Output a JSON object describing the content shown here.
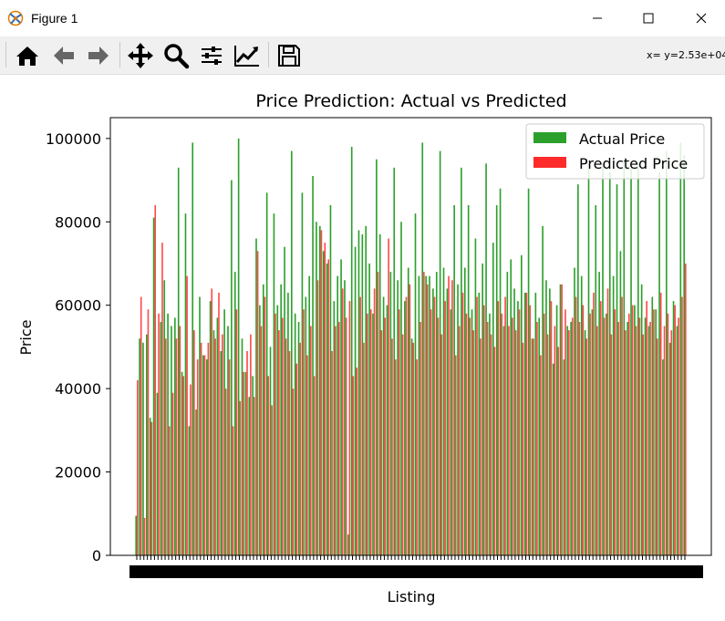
{
  "window": {
    "title": "Figure 1",
    "app_icon": "matplotlib-icon",
    "controls": [
      "minimize-icon",
      "maximize-icon",
      "close-icon"
    ]
  },
  "toolbar": {
    "buttons": [
      "home-icon",
      "back-arrow-icon",
      "forward-arrow-icon",
      "pan-icon",
      "zoom-icon",
      "subplots-icon",
      "edit-axis-icon",
      "save-icon"
    ],
    "coords": "x= y=2.53e+04"
  },
  "chart_data": {
    "type": "bar",
    "title": "Price Prediction: Actual vs Predicted",
    "xlabel": "Listing",
    "ylabel": "Price",
    "ylim": [
      0,
      105000
    ],
    "yticks": [
      0,
      20000,
      40000,
      60000,
      80000,
      100000
    ],
    "ytick_labels": [
      "0",
      "20000",
      "40000",
      "60000",
      "80000",
      "100000"
    ],
    "grid": false,
    "legend": {
      "position": "top-right"
    },
    "series": [
      {
        "name": "Actual Price",
        "color": "#2ca02c",
        "values": [
          9500,
          52000,
          51000,
          53000,
          33000,
          81000,
          39000,
          56000,
          66000,
          58000,
          55000,
          57000,
          93000,
          44000,
          82000,
          31000,
          99000,
          35000,
          62000,
          48000,
          47000,
          61000,
          54000,
          57000,
          49000,
          59000,
          55000,
          90000,
          68000,
          100000,
          52000,
          44000,
          38000,
          43000,
          76000,
          60000,
          65000,
          87000,
          50000,
          82000,
          60000,
          65000,
          74000,
          63000,
          97000,
          58000,
          56000,
          87000,
          62000,
          67000,
          91000,
          80000,
          79000,
          73000,
          70000,
          84000,
          61000,
          67000,
          71000,
          66000,
          5000,
          98000,
          74000,
          78000,
          77000,
          79000,
          70000,
          58000,
          95000,
          77000,
          62000,
          60000,
          68000,
          93000,
          66000,
          80000,
          61000,
          69000,
          52000,
          82000,
          67000,
          99000,
          67000,
          67000,
          64000,
          68000,
          97000,
          69000,
          64000,
          59000,
          84000,
          65000,
          93000,
          69000,
          84000,
          59000,
          76000,
          63000,
          70000,
          94000,
          58000,
          75000,
          84000,
          88000,
          55000,
          68000,
          71000,
          64000,
          61000,
          72000,
          63000,
          88000,
          52000,
          63000,
          57000,
          79000,
          66000,
          64000,
          46000,
          60000,
          65000,
          47000,
          55000,
          56000,
          69000,
          89000,
          67000,
          54000,
          94000,
          59000,
          84000,
          68000,
          94000,
          58000,
          92000,
          67000,
          89000,
          73000,
          95000,
          56000,
          93000,
          60000,
          94000,
          65000,
          57000,
          55000,
          62000,
          59000,
          92000,
          47000,
          97000,
          51000,
          61000,
          55000,
          99000,
          96000
        ]
      },
      {
        "name": "Predicted Price",
        "color": "#ff2a2a",
        "values": [
          42000,
          62000,
          9000,
          59000,
          32000,
          84000,
          58000,
          75000,
          52000,
          31000,
          39000,
          52000,
          55000,
          43000,
          67000,
          41000,
          54000,
          47000,
          51000,
          48000,
          51000,
          64000,
          52000,
          63000,
          53000,
          40000,
          47000,
          31000,
          59000,
          37000,
          44000,
          49000,
          53000,
          38000,
          73000,
          55000,
          62000,
          43000,
          36000,
          58000,
          54000,
          57000,
          52000,
          49000,
          40000,
          46000,
          51000,
          59000,
          48000,
          55000,
          43000,
          66000,
          78000,
          75000,
          71000,
          49000,
          55000,
          56000,
          64000,
          57000,
          61000,
          43000,
          45000,
          62000,
          51000,
          58000,
          59000,
          64000,
          68000,
          54000,
          57000,
          76000,
          52000,
          47000,
          59000,
          53000,
          62000,
          65000,
          51000,
          47000,
          56000,
          68000,
          65000,
          59000,
          62000,
          57000,
          53000,
          61000,
          67000,
          66000,
          48000,
          55000,
          63000,
          58000,
          57000,
          54000,
          62000,
          52000,
          60000,
          56000,
          53000,
          50000,
          61000,
          58000,
          62000,
          55000,
          57000,
          54000,
          59000,
          51000,
          63000,
          60000,
          52000,
          56000,
          48000,
          58000,
          53000,
          61000,
          55000,
          50000,
          65000,
          59000,
          54000,
          57000,
          62000,
          56000,
          60000,
          52000,
          58000,
          63000,
          55000,
          61000,
          57000,
          64000,
          53000,
          59000,
          56000,
          62000,
          54000,
          58000,
          60000,
          55000,
          57000,
          53000,
          61000,
          56000,
          59000,
          52000,
          63000,
          55000,
          58000,
          54000,
          60000,
          57000,
          62000,
          70000
        ]
      }
    ]
  }
}
